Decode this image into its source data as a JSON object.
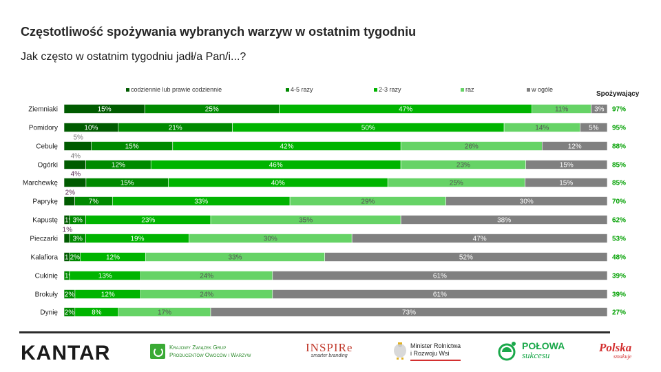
{
  "header": {
    "title": "Częstotliwość spożywania wybranych warzyw w ostatnim tygodniu",
    "subtitle": "Jak często w ostatnim tygodniu jadł/a Pan/i...?"
  },
  "chart_data": {
    "type": "bar",
    "orientation": "horizontal",
    "stacked": true,
    "percent_stacked": true,
    "title": "Częstotliwość spożywania wybranych warzyw w ostatnim tygodniu",
    "xlabel": "",
    "ylabel": "",
    "xlim": [
      0,
      100
    ],
    "grid": false,
    "legend_position": "top",
    "categories": [
      "Ziemniaki",
      "Pomidory",
      "Cebulę",
      "Ogórki",
      "Marchewkę",
      "Paprykę",
      "Kapustę",
      "Pieczarki",
      "Kalafiora",
      "Cukinię",
      "Brokuły",
      "Dynię"
    ],
    "series": [
      {
        "name": "codziennie lub prawie codziennie",
        "color": "#005b00",
        "values": [
          15,
          10,
          5,
          4,
          4,
          2,
          1,
          1,
          1,
          0,
          0,
          0
        ],
        "labels": [
          "15%",
          "10%",
          "5%",
          "4%",
          "4%",
          "2%",
          "1%",
          "1%",
          "1",
          "",
          "",
          ""
        ]
      },
      {
        "name": "4-5 razy",
        "color": "#008a00",
        "values": [
          25,
          21,
          15,
          12,
          15,
          7,
          3,
          3,
          2,
          1,
          2,
          2
        ],
        "labels": [
          "25%",
          "21%",
          "15%",
          "12%",
          "15%",
          "7%",
          "3%",
          "3%",
          "2%",
          "1%",
          "2%",
          "2%"
        ]
      },
      {
        "name": "2-3 razy",
        "color": "#00b400",
        "values": [
          47,
          50,
          42,
          46,
          40,
          33,
          23,
          19,
          12,
          13,
          12,
          8
        ],
        "labels": [
          "47%",
          "50%",
          "42%",
          "46%",
          "40%",
          "33%",
          "23%",
          "19%",
          "12%",
          "13%",
          "12%",
          "8%"
        ]
      },
      {
        "name": "raz",
        "color": "#66d366",
        "values": [
          11,
          14,
          26,
          23,
          25,
          29,
          35,
          30,
          33,
          24,
          24,
          17
        ],
        "labels": [
          "11%",
          "14%",
          "26%",
          "23%",
          "25%",
          "29%",
          "35%",
          "30%",
          "33%",
          "24%",
          "24%",
          "17%"
        ]
      },
      {
        "name": "w ogóle",
        "color": "#808080",
        "values": [
          3,
          5,
          12,
          15,
          15,
          30,
          38,
          47,
          52,
          61,
          61,
          73
        ],
        "labels": [
          "3%",
          "5%",
          "12%",
          "15%",
          "15%",
          "30%",
          "38%",
          "47%",
          "52%",
          "61%",
          "61%",
          "73%"
        ]
      }
    ],
    "small_labels_outside": [
      "",
      "",
      "5%",
      "4%",
      "4%",
      "2%",
      "",
      "1%",
      "",
      "",
      "",
      ""
    ],
    "consumers_header": "Spożywający",
    "consumers_color": "#00a000",
    "consumers": [
      "97%",
      "95%",
      "88%",
      "85%",
      "85%",
      "70%",
      "62%",
      "53%",
      "48%",
      "39%",
      "39%",
      "27%"
    ]
  },
  "footer": {
    "logos": {
      "kantar": "KANTAR",
      "kzg_line1": "Krajowy Związek Grup",
      "kzg_line2": "Producentów Owoców i Warzyw",
      "inspire": "INSPIRe",
      "inspire_sub": "smarter branding",
      "minister_line1": "Minister Rolnictwa",
      "minister_line2": "i Rozwoju Wsi",
      "polowa_main": "POŁOWA",
      "polowa_sub": "sukcesu",
      "polska_main": "Polska",
      "polska_sub": "smakuje"
    }
  }
}
